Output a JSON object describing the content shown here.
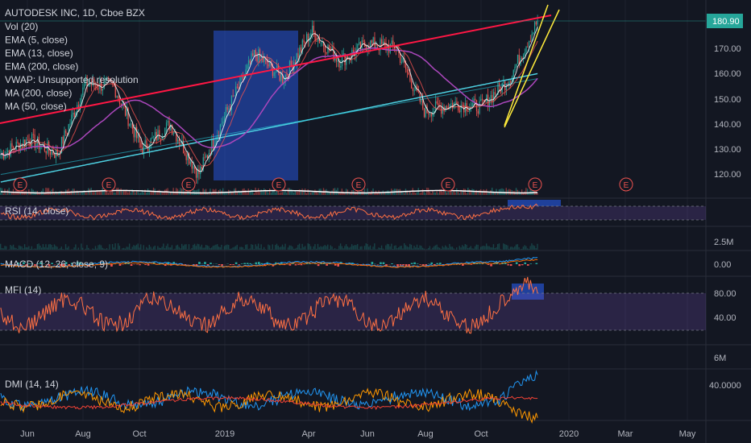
{
  "chart_data": {
    "type": "candlestick",
    "title": "AUTODESK INC, 1D, Cboe BZX",
    "last_price": "180.90",
    "x_ticks": [
      "Jun",
      "Aug",
      "Oct",
      "2019",
      "Apr",
      "Jun",
      "Aug",
      "Oct",
      "2020",
      "Mar",
      "May"
    ],
    "price_axis": {
      "ylim": [
        112,
        186
      ],
      "ticks": [
        "180.90",
        "170.00",
        "160.00",
        "150.00",
        "140.00",
        "130.00",
        "120.00"
      ]
    },
    "price_series": [
      {
        "month": "2018-05",
        "close": 128
      },
      {
        "month": "2018-06",
        "close": 134
      },
      {
        "month": "2018-07",
        "close": 128
      },
      {
        "month": "2018-08",
        "close": 156
      },
      {
        "month": "2018-09",
        "close": 155
      },
      {
        "month": "2018-10",
        "close": 130
      },
      {
        "month": "2018-11",
        "close": 140
      },
      {
        "month": "2018-12",
        "close": 120
      },
      {
        "month": "2019-01",
        "close": 145
      },
      {
        "month": "2019-02",
        "close": 168
      },
      {
        "month": "2019-03",
        "close": 158
      },
      {
        "month": "2019-04",
        "close": 177
      },
      {
        "month": "2019-05",
        "close": 165
      },
      {
        "month": "2019-06",
        "close": 172
      },
      {
        "month": "2019-07",
        "close": 170
      },
      {
        "month": "2019-08",
        "close": 145
      },
      {
        "month": "2019-09",
        "close": 148
      },
      {
        "month": "2019-10",
        "close": 147
      },
      {
        "month": "2019-11",
        "close": 158
      },
      {
        "month": "2019-12",
        "close": 180.9
      }
    ],
    "legend": [
      "Vol (20)",
      "EMA (5, close)",
      "EMA (13, close)",
      "EMA (200, close)",
      "VWAP: Unsupported resolution",
      "MA (200, close)",
      "MA (50, close)"
    ],
    "earnings_marker": "E",
    "panels": {
      "rsi": {
        "label": "RSI (14, close)"
      },
      "volume": {
        "tick": "2.5M"
      },
      "macd": {
        "label": "MACD (12, 26, close, 9)",
        "tick": "0.00"
      },
      "mfi": {
        "label": "MFI (14)",
        "ticks": [
          "80.00",
          "40.00"
        ]
      },
      "volume2": {
        "tick": "6M"
      },
      "dmi": {
        "label": "DMI (14, 14)",
        "tick": "40.0000"
      }
    },
    "colors": {
      "background": "#131722",
      "up": "#26a69a",
      "down": "#ef5350",
      "trendline": "#ff1744",
      "channel": "#ffeb3b",
      "highlight": "#2a62ff",
      "ma200": "#4dd0e1",
      "ma50": "#ab47bc",
      "ema": "#ffffff",
      "panel_band": "#7e57c2",
      "rsi_line": "#ff7043",
      "dmi_plus": "#2196f3",
      "dmi_minus": "#ff9800",
      "dmi_adx": "#f44336"
    }
  }
}
